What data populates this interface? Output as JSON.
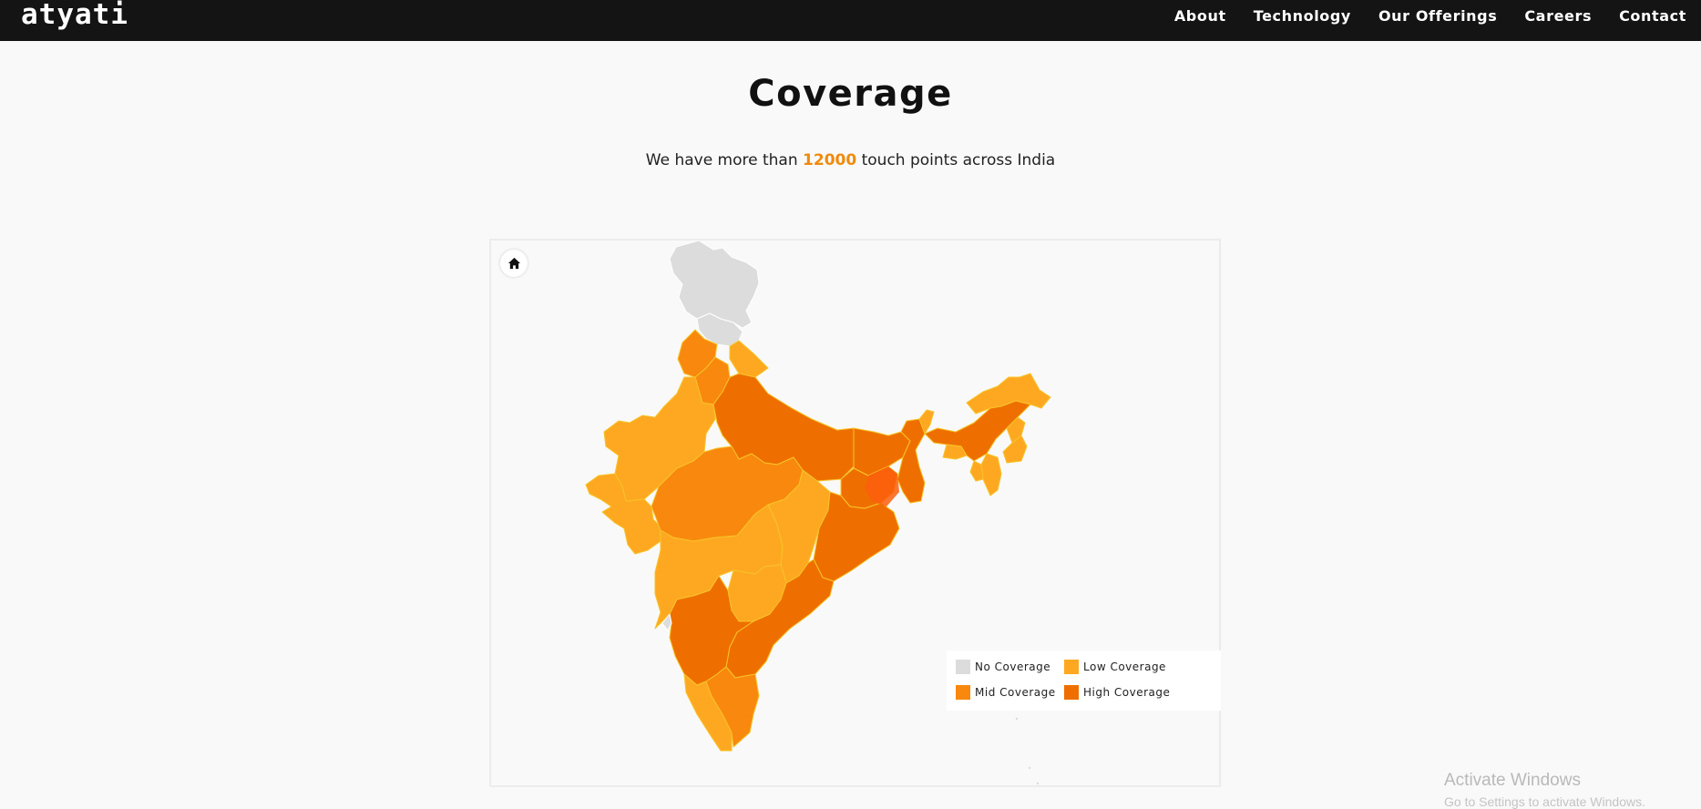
{
  "header": {
    "logo": "atyati",
    "nav": [
      "About",
      "Technology",
      "Our Offerings",
      "Careers",
      "Contact"
    ]
  },
  "page": {
    "title": "Coverage",
    "subtitle_before": "We have more than",
    "subtitle_number": "12000",
    "subtitle_after": "touch points across India"
  },
  "map": {
    "home_icon": "home-icon",
    "colors": {
      "no": "#dcdcdc",
      "low": "#fea822",
      "mid": "#f9880e",
      "high": "#ee6f00",
      "highlight": "#fb5f0c",
      "border": "#f7c427"
    },
    "legend": [
      {
        "label": "No Coverage",
        "level": "no"
      },
      {
        "label": "Low Coverage",
        "level": "low"
      },
      {
        "label": "Mid Coverage",
        "level": "mid"
      },
      {
        "label": "High Coverage",
        "level": "high"
      }
    ],
    "regions": [
      {
        "name": "Jammu and Kashmir",
        "level": "no"
      },
      {
        "name": "Himachal Pradesh",
        "level": "no"
      },
      {
        "name": "Punjab",
        "level": "mid"
      },
      {
        "name": "Uttarakhand",
        "level": "low"
      },
      {
        "name": "Haryana",
        "level": "mid"
      },
      {
        "name": "Rajasthan",
        "level": "low"
      },
      {
        "name": "Uttar Pradesh",
        "level": "high"
      },
      {
        "name": "Gujarat",
        "level": "low"
      },
      {
        "name": "Madhya Pradesh",
        "level": "mid"
      },
      {
        "name": "Bihar",
        "level": "high"
      },
      {
        "name": "Jharkhand",
        "level": "high"
      },
      {
        "name": "West Bengal",
        "level": "high"
      },
      {
        "name": "Chhattisgarh",
        "level": "low"
      },
      {
        "name": "Odisha",
        "level": "high"
      },
      {
        "name": "Maharashtra",
        "level": "low"
      },
      {
        "name": "Telangana",
        "level": "low"
      },
      {
        "name": "Andhra Pradesh",
        "level": "high"
      },
      {
        "name": "Karnataka",
        "level": "high"
      },
      {
        "name": "Goa",
        "level": "no"
      },
      {
        "name": "Kerala",
        "level": "low"
      },
      {
        "name": "Tamil Nadu",
        "level": "mid"
      },
      {
        "name": "Sikkim",
        "level": "low"
      },
      {
        "name": "Arunachal Pradesh",
        "level": "low"
      },
      {
        "name": "Assam",
        "level": "high"
      },
      {
        "name": "Meghalaya",
        "level": "low"
      },
      {
        "name": "Nagaland",
        "level": "low"
      },
      {
        "name": "Manipur",
        "level": "low"
      },
      {
        "name": "Mizoram",
        "level": "low"
      },
      {
        "name": "Tripura",
        "level": "low"
      }
    ]
  },
  "os_watermark": {
    "line1": "Activate Windows",
    "line2": "Go to Settings to activate Windows."
  }
}
